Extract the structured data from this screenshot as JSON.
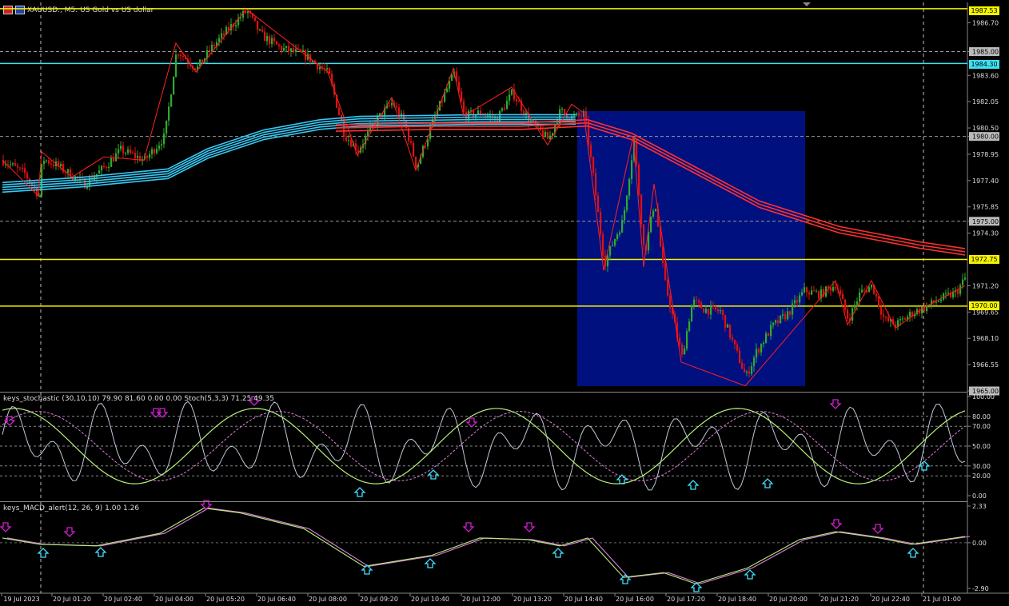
{
  "header": {
    "title": "XAUUSD., M5:  US Gold vs US dollar",
    "icons": [
      "chart-menu-icon",
      "symbol-flag-icon"
    ]
  },
  "colors": {
    "background": "#000000",
    "bull_candle": "#2eaa2e",
    "bear_candle": "#e01010",
    "zigzag": "#ff2020",
    "ma_blue": "#36c8f4",
    "ma_red": "#ff3030",
    "hline_yellow": "#f4f400",
    "hline_cyan": "#3ce2f2",
    "box_navy": "#00107e",
    "stoch_main": "#b8f078",
    "stoch_signal": "#e080e0",
    "stoch_fast": "#c0c8d8",
    "arrow_down": "#d020d0",
    "arrow_up": "#40e0ff"
  },
  "price_axis": {
    "labels": [
      "1986.70",
      "1985.00",
      "1983.60",
      "1982.05",
      "1980.50",
      "1980.00",
      "1978.95",
      "1977.40",
      "1975.85",
      "1975.00",
      "1974.30",
      "1971.20",
      "1969.65",
      "1968.10",
      "1966.55",
      "1965.00"
    ],
    "tags": {
      "top": "1987.53",
      "cyan": "1984.30",
      "yellow_mid": "1972.75",
      "yellow_low": "1970.00"
    }
  },
  "stoch_pane": {
    "title": "keys_stochastic (30,10,10) 79.90 81.60 0.00 0.00 Stoch(5,3,3) 71.25 49.35",
    "levels": [
      "100.00",
      "80.00",
      "70.00",
      "50.00",
      "30.00",
      "20.00",
      "0.00"
    ]
  },
  "macd_pane": {
    "title": "keys_MACD_alert(12, 26, 9) 1.00 1.26",
    "levels": [
      "2.33",
      "0.00",
      "-2.90"
    ]
  },
  "time_axis": [
    "19 Jul 2023",
    "20 Jul 01:20",
    "20 Jul 02:40",
    "20 Jul 04:00",
    "20 Jul 05:20",
    "20 Jul 06:40",
    "20 Jul 08:00",
    "20 Jul 09:20",
    "20 Jul 10:40",
    "20 Jul 12:00",
    "20 Jul 13:20",
    "20 Jul 14:40",
    "20 Jul 16:00",
    "20 Jul 17:20",
    "20 Jul 18:40",
    "20 Jul 20:00",
    "20 Jul 21:20",
    "20 Jul 22:40",
    "21 Jul 01:00"
  ],
  "chart_data": {
    "type": "candlestick",
    "symbol": "XAUUSD.",
    "timeframe": "M5",
    "ylim": [
      1965.0,
      1987.9
    ],
    "close_path": [
      {
        "t": "19 Jul 2023",
        "p": 1978.6
      },
      {
        "t": "20 Jul 01:20",
        "p": 1977.8
      },
      {
        "t": "20 Jul 02:40",
        "p": 1978.9
      },
      {
        "t": "20 Jul 04:00",
        "p": 1985.5
      },
      {
        "t": "20 Jul 05:20",
        "p": 1987.0
      },
      {
        "t": "20 Jul 06:40",
        "p": 1984.8
      },
      {
        "t": "20 Jul 08:00",
        "p": 1980.1
      },
      {
        "t": "20 Jul 09:20",
        "p": 1981.8
      },
      {
        "t": "20 Jul 10:40",
        "p": 1982.0
      },
      {
        "t": "20 Jul 12:00",
        "p": 1981.3
      },
      {
        "t": "20 Jul 13:20",
        "p": 1980.8
      },
      {
        "t": "20 Jul 14:40",
        "p": 1981.1
      },
      {
        "t": "20 Jul 16:00",
        "p": 1979.8
      },
      {
        "t": "20 Jul 17:20",
        "p": 1969.8
      },
      {
        "t": "20 Jul 18:40",
        "p": 1966.2
      },
      {
        "t": "20 Jul 20:00",
        "p": 1970.3
      },
      {
        "t": "20 Jul 21:20",
        "p": 1970.2
      },
      {
        "t": "20 Jul 22:40",
        "p": 1969.2
      },
      {
        "t": "21 Jul 01:00",
        "p": 1971.5
      }
    ],
    "horizontal_levels": [
      1987.53,
      1984.3,
      1972.75,
      1970.0
    ],
    "stochastic": {
      "k": 71.25,
      "d": 49.35,
      "levels": [
        20,
        30,
        50,
        70,
        80
      ]
    },
    "macd": {
      "main": 1.0,
      "signal": 1.26,
      "ylim": [
        -2.9,
        2.33
      ]
    }
  }
}
